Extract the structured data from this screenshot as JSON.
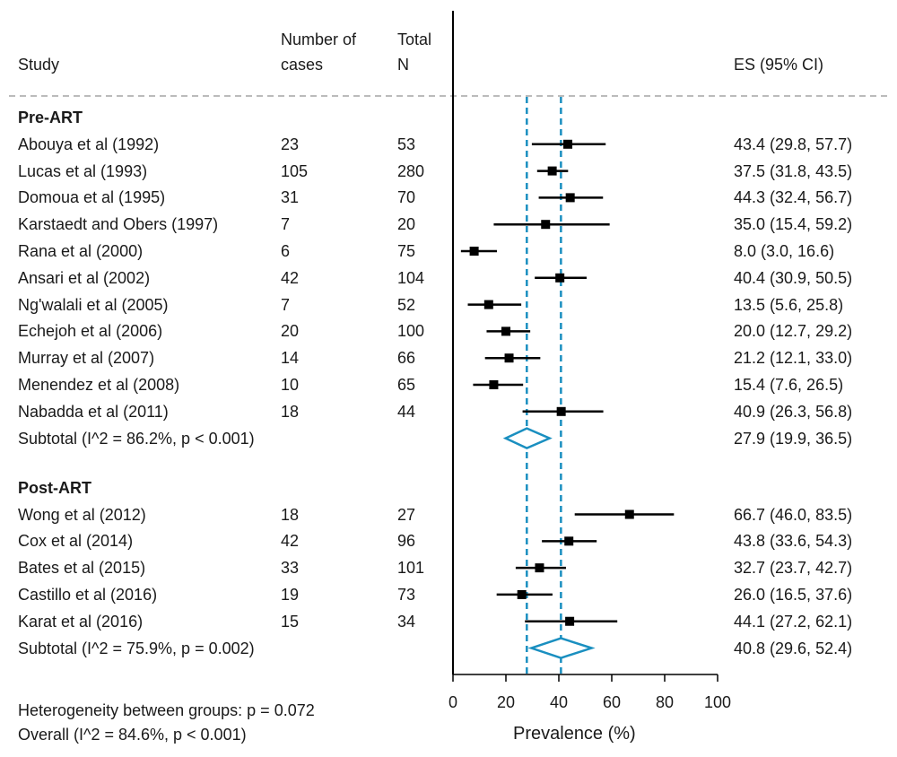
{
  "headers": {
    "study": "Study",
    "cases_line1": "Number of",
    "cases_line2": "cases",
    "total_line1": "Total",
    "total_line2": "N",
    "es": "ES (95% CI)"
  },
  "footer": {
    "heterogeneity": "Heterogeneity between groups: p = 0.072",
    "overall": "Overall  (I^2 = 84.6%, p < 0.001)"
  },
  "chart_data": {
    "type": "forest",
    "xlabel": "Prevalence (%)",
    "xlim": [
      0,
      100
    ],
    "xticks": [
      "0",
      "20",
      "40",
      "60",
      "80",
      "100"
    ],
    "reference_lines": [
      27.9,
      40.8
    ],
    "colors": {
      "points": "#000000",
      "subtotal": "#1a8fc0",
      "reference": "#1a8fc0",
      "separator": "#bbbbbb"
    },
    "groups": [
      {
        "name": "Pre-ART",
        "studies": [
          {
            "study": "Abouya et al (1992)",
            "cases": "23",
            "n": "53",
            "es": 43.4,
            "lo": 29.8,
            "hi": 57.7,
            "label": "43.4 (29.8, 57.7)"
          },
          {
            "study": "Lucas et al (1993)",
            "cases": "105",
            "n": "280",
            "es": 37.5,
            "lo": 31.8,
            "hi": 43.5,
            "label": "37.5 (31.8, 43.5)"
          },
          {
            "study": "Domoua et al (1995)",
            "cases": "31",
            "n": "70",
            "es": 44.3,
            "lo": 32.4,
            "hi": 56.7,
            "label": "44.3 (32.4, 56.7)"
          },
          {
            "study": "Karstaedt and Obers (1997)",
            "cases": "7",
            "n": "20",
            "es": 35.0,
            "lo": 15.4,
            "hi": 59.2,
            "label": "35.0 (15.4, 59.2)"
          },
          {
            "study": "Rana et al (2000)",
            "cases": "6",
            "n": "75",
            "es": 8.0,
            "lo": 3.0,
            "hi": 16.6,
            "label": "8.0 (3.0, 16.6)"
          },
          {
            "study": "Ansari et al (2002)",
            "cases": "42",
            "n": "104",
            "es": 40.4,
            "lo": 30.9,
            "hi": 50.5,
            "label": "40.4 (30.9, 50.5)"
          },
          {
            "study": "Ng'walali et al (2005)",
            "cases": "7",
            "n": "52",
            "es": 13.5,
            "lo": 5.6,
            "hi": 25.8,
            "label": "13.5 (5.6, 25.8)"
          },
          {
            "study": "Echejoh et al (2006)",
            "cases": "20",
            "n": "100",
            "es": 20.0,
            "lo": 12.7,
            "hi": 29.2,
            "label": "20.0 (12.7, 29.2)"
          },
          {
            "study": "Murray et al (2007)",
            "cases": "14",
            "n": "66",
            "es": 21.2,
            "lo": 12.1,
            "hi": 33.0,
            "label": "21.2 (12.1, 33.0)"
          },
          {
            "study": "Menendez et al (2008)",
            "cases": "10",
            "n": "65",
            "es": 15.4,
            "lo": 7.6,
            "hi": 26.5,
            "label": "15.4 (7.6, 26.5)"
          },
          {
            "study": "Nabadda et al (2011)",
            "cases": "18",
            "n": "44",
            "es": 40.9,
            "lo": 26.3,
            "hi": 56.8,
            "label": "40.9 (26.3, 56.8)"
          }
        ],
        "subtotal": {
          "label_text": "Subtotal  (I^2 = 86.2%, p < 0.001)",
          "es": 27.9,
          "lo": 19.9,
          "hi": 36.5,
          "label": "27.9 (19.9, 36.5)"
        }
      },
      {
        "name": "Post-ART",
        "studies": [
          {
            "study": "Wong et al (2012)",
            "cases": "18",
            "n": "27",
            "es": 66.7,
            "lo": 46.0,
            "hi": 83.5,
            "label": "66.7 (46.0, 83.5)"
          },
          {
            "study": "Cox et al (2014)",
            "cases": "42",
            "n": "96",
            "es": 43.8,
            "lo": 33.6,
            "hi": 54.3,
            "label": "43.8 (33.6, 54.3)"
          },
          {
            "study": "Bates et al (2015)",
            "cases": "33",
            "n": "101",
            "es": 32.7,
            "lo": 23.7,
            "hi": 42.7,
            "label": "32.7 (23.7, 42.7)"
          },
          {
            "study": "Castillo et al (2016)",
            "cases": "19",
            "n": "73",
            "es": 26.0,
            "lo": 16.5,
            "hi": 37.6,
            "label": "26.0 (16.5, 37.6)"
          },
          {
            "study": "Karat et al (2016)",
            "cases": "15",
            "n": "34",
            "es": 44.1,
            "lo": 27.2,
            "hi": 62.1,
            "label": "44.1 (27.2, 62.1)"
          }
        ],
        "subtotal": {
          "label_text": "Subtotal  (I^2 = 75.9%, p = 0.002)",
          "es": 40.8,
          "lo": 29.6,
          "hi": 52.4,
          "label": "40.8 (29.6, 52.4)"
        }
      }
    ]
  }
}
